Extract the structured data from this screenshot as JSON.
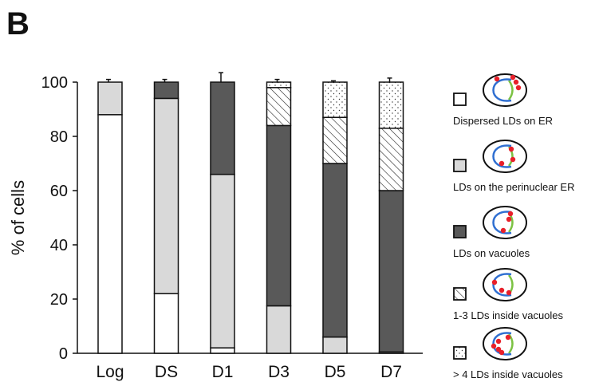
{
  "panel_label": "B",
  "chart_data": {
    "type": "bar",
    "stacked": true,
    "categories": [
      "Log",
      "DS",
      "D1",
      "D3",
      "D5",
      "D7"
    ],
    "ylabel": "% of cells",
    "ylim": [
      0,
      100
    ],
    "yticks": [
      0,
      20,
      40,
      60,
      80,
      100
    ],
    "legend_position": "right",
    "series": [
      {
        "name": "Dispersed LDs on  ER",
        "fill": "#ffffff",
        "pattern": "none",
        "values": [
          88,
          22,
          2,
          0,
          0,
          0
        ],
        "errors": [
          1.5,
          0.8,
          5,
          0,
          0,
          0
        ]
      },
      {
        "name": "LDs on the perinuclear ER",
        "fill": "#d9d9d9",
        "pattern": "none",
        "values": [
          12,
          72,
          64,
          17.5,
          6,
          0.5
        ],
        "errors": [
          1,
          5,
          3,
          1.5,
          0.5,
          0
        ]
      },
      {
        "name": "LDs on vacuoles",
        "fill": "#595959",
        "pattern": "none",
        "values": [
          0,
          6,
          34,
          66.5,
          64,
          59.5
        ],
        "errors": [
          0,
          1,
          3.5,
          2.5,
          1.5,
          6.5
        ]
      },
      {
        "name": "1-3 LDs inside vacuoles",
        "fill": "#ffffff",
        "pattern": "hatch",
        "values": [
          0,
          0,
          0,
          14,
          17,
          23
        ],
        "errors": [
          0,
          0,
          0,
          1,
          1.5,
          4.5
        ]
      },
      {
        "name": "> 4 LDs inside vacuoles",
        "fill": "#ffffff",
        "pattern": "dots",
        "values": [
          0,
          0,
          0,
          2,
          13,
          17
        ],
        "errors": [
          0,
          0,
          0,
          1,
          0.5,
          1.5
        ]
      }
    ],
    "colors": {
      "ER": "#2f6fd1",
      "nucleus_lipid": "#e8202a",
      "vacuole": "#7cc243"
    }
  }
}
